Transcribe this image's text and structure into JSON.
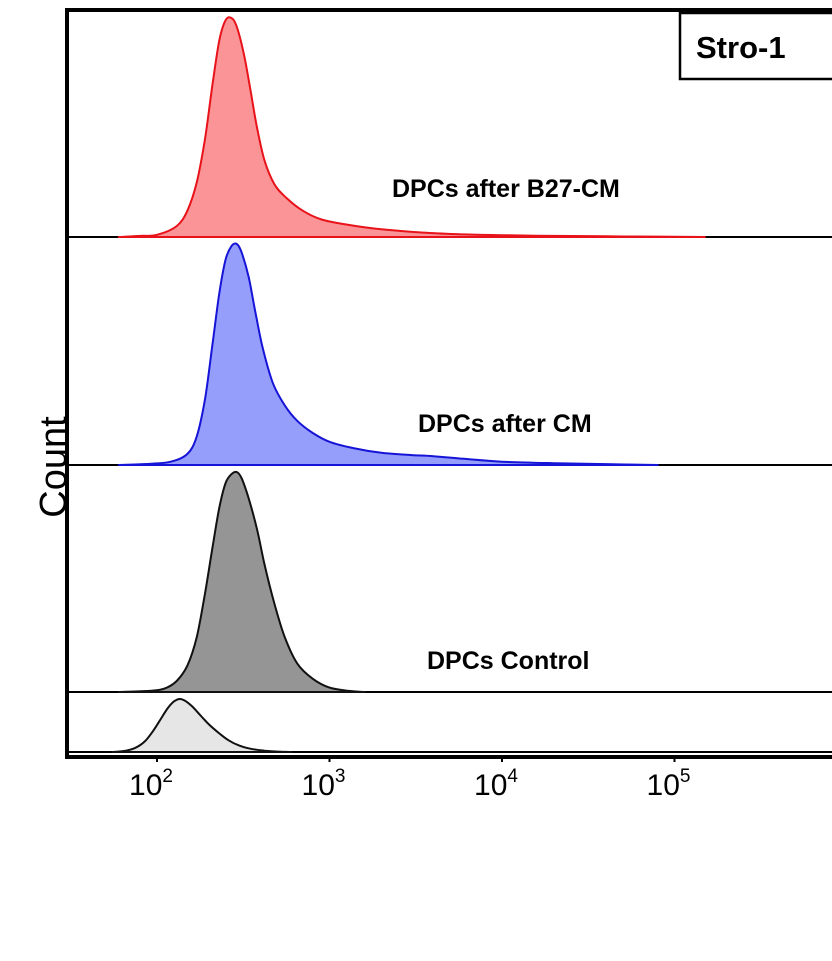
{
  "chart_data": {
    "type": "area",
    "title": "Stro-1",
    "ylabel": "Count",
    "xlabel": "",
    "x_scale": "log",
    "xlim": [
      45,
      400000
    ],
    "x_ticks": [
      {
        "base": "10",
        "exp": "2",
        "value": 100
      },
      {
        "base": "10",
        "exp": "3",
        "value": 1000
      },
      {
        "base": "10",
        "exp": "4",
        "value": 10000
      },
      {
        "base": "10",
        "exp": "5",
        "value": 100000
      }
    ],
    "grid": false,
    "series": [
      {
        "name": "DPCs after B27-CM",
        "fill": "#fa9496",
        "stroke": "#e8131a",
        "peak_x": 270,
        "points": [
          [
            60,
            0
          ],
          [
            80,
            0.005
          ],
          [
            100,
            0.01
          ],
          [
            130,
            0.05
          ],
          [
            150,
            0.12
          ],
          [
            170,
            0.25
          ],
          [
            190,
            0.45
          ],
          [
            210,
            0.7
          ],
          [
            230,
            0.9
          ],
          [
            250,
            0.99
          ],
          [
            270,
            1.0
          ],
          [
            290,
            0.96
          ],
          [
            320,
            0.83
          ],
          [
            350,
            0.66
          ],
          [
            380,
            0.5
          ],
          [
            420,
            0.35
          ],
          [
            480,
            0.24
          ],
          [
            560,
            0.18
          ],
          [
            700,
            0.12
          ],
          [
            900,
            0.08
          ],
          [
            1300,
            0.055
          ],
          [
            2000,
            0.035
          ],
          [
            3500,
            0.02
          ],
          [
            6000,
            0.012
          ],
          [
            10000,
            0.008
          ],
          [
            20000,
            0.005
          ],
          [
            40000,
            0.003
          ],
          [
            80000,
            0.002
          ],
          [
            150000,
            0
          ]
        ]
      },
      {
        "name": "DPCs after CM",
        "fill": "#969efc",
        "stroke": "#1614d6",
        "peak_x": 280,
        "points": [
          [
            60,
            0
          ],
          [
            90,
            0.005
          ],
          [
            120,
            0.015
          ],
          [
            150,
            0.05
          ],
          [
            170,
            0.13
          ],
          [
            190,
            0.3
          ],
          [
            210,
            0.55
          ],
          [
            230,
            0.78
          ],
          [
            250,
            0.93
          ],
          [
            270,
            0.99
          ],
          [
            290,
            1.0
          ],
          [
            310,
            0.96
          ],
          [
            340,
            0.85
          ],
          [
            370,
            0.7
          ],
          [
            410,
            0.53
          ],
          [
            470,
            0.37
          ],
          [
            550,
            0.27
          ],
          [
            650,
            0.2
          ],
          [
            800,
            0.145
          ],
          [
            1000,
            0.105
          ],
          [
            1400,
            0.075
          ],
          [
            2000,
            0.055
          ],
          [
            3000,
            0.045
          ],
          [
            4000,
            0.04
          ],
          [
            6000,
            0.028
          ],
          [
            10000,
            0.015
          ],
          [
            20000,
            0.008
          ],
          [
            40000,
            0.004
          ],
          [
            80000,
            0
          ]
        ]
      },
      {
        "name": "DPCs Control",
        "fill": "#959595",
        "stroke": "#111111",
        "peak_x": 290,
        "points": [
          [
            60,
            0
          ],
          [
            90,
            0.005
          ],
          [
            110,
            0.015
          ],
          [
            130,
            0.05
          ],
          [
            150,
            0.12
          ],
          [
            170,
            0.25
          ],
          [
            190,
            0.45
          ],
          [
            210,
            0.66
          ],
          [
            230,
            0.84
          ],
          [
            250,
            0.95
          ],
          [
            270,
            0.99
          ],
          [
            290,
            1.0
          ],
          [
            310,
            0.97
          ],
          [
            340,
            0.88
          ],
          [
            380,
            0.74
          ],
          [
            420,
            0.58
          ],
          [
            480,
            0.4
          ],
          [
            550,
            0.25
          ],
          [
            650,
            0.13
          ],
          [
            800,
            0.06
          ],
          [
            1000,
            0.02
          ],
          [
            1300,
            0.005
          ],
          [
            1600,
            0
          ]
        ]
      },
      {
        "name": "",
        "fill": "#e6e6e6",
        "stroke": "#111111",
        "peak_x": 135,
        "points": [
          [
            55,
            0
          ],
          [
            65,
            0.02
          ],
          [
            75,
            0.08
          ],
          [
            85,
            0.2
          ],
          [
            95,
            0.4
          ],
          [
            105,
            0.62
          ],
          [
            115,
            0.82
          ],
          [
            125,
            0.95
          ],
          [
            135,
            1.0
          ],
          [
            145,
            0.97
          ],
          [
            160,
            0.86
          ],
          [
            180,
            0.68
          ],
          [
            200,
            0.52
          ],
          [
            230,
            0.35
          ],
          [
            260,
            0.22
          ],
          [
            300,
            0.12
          ],
          [
            350,
            0.06
          ],
          [
            420,
            0.025
          ],
          [
            500,
            0.008
          ],
          [
            600,
            0
          ]
        ]
      }
    ]
  },
  "colors": {
    "frame": "#000000",
    "background": "#ffffff"
  }
}
